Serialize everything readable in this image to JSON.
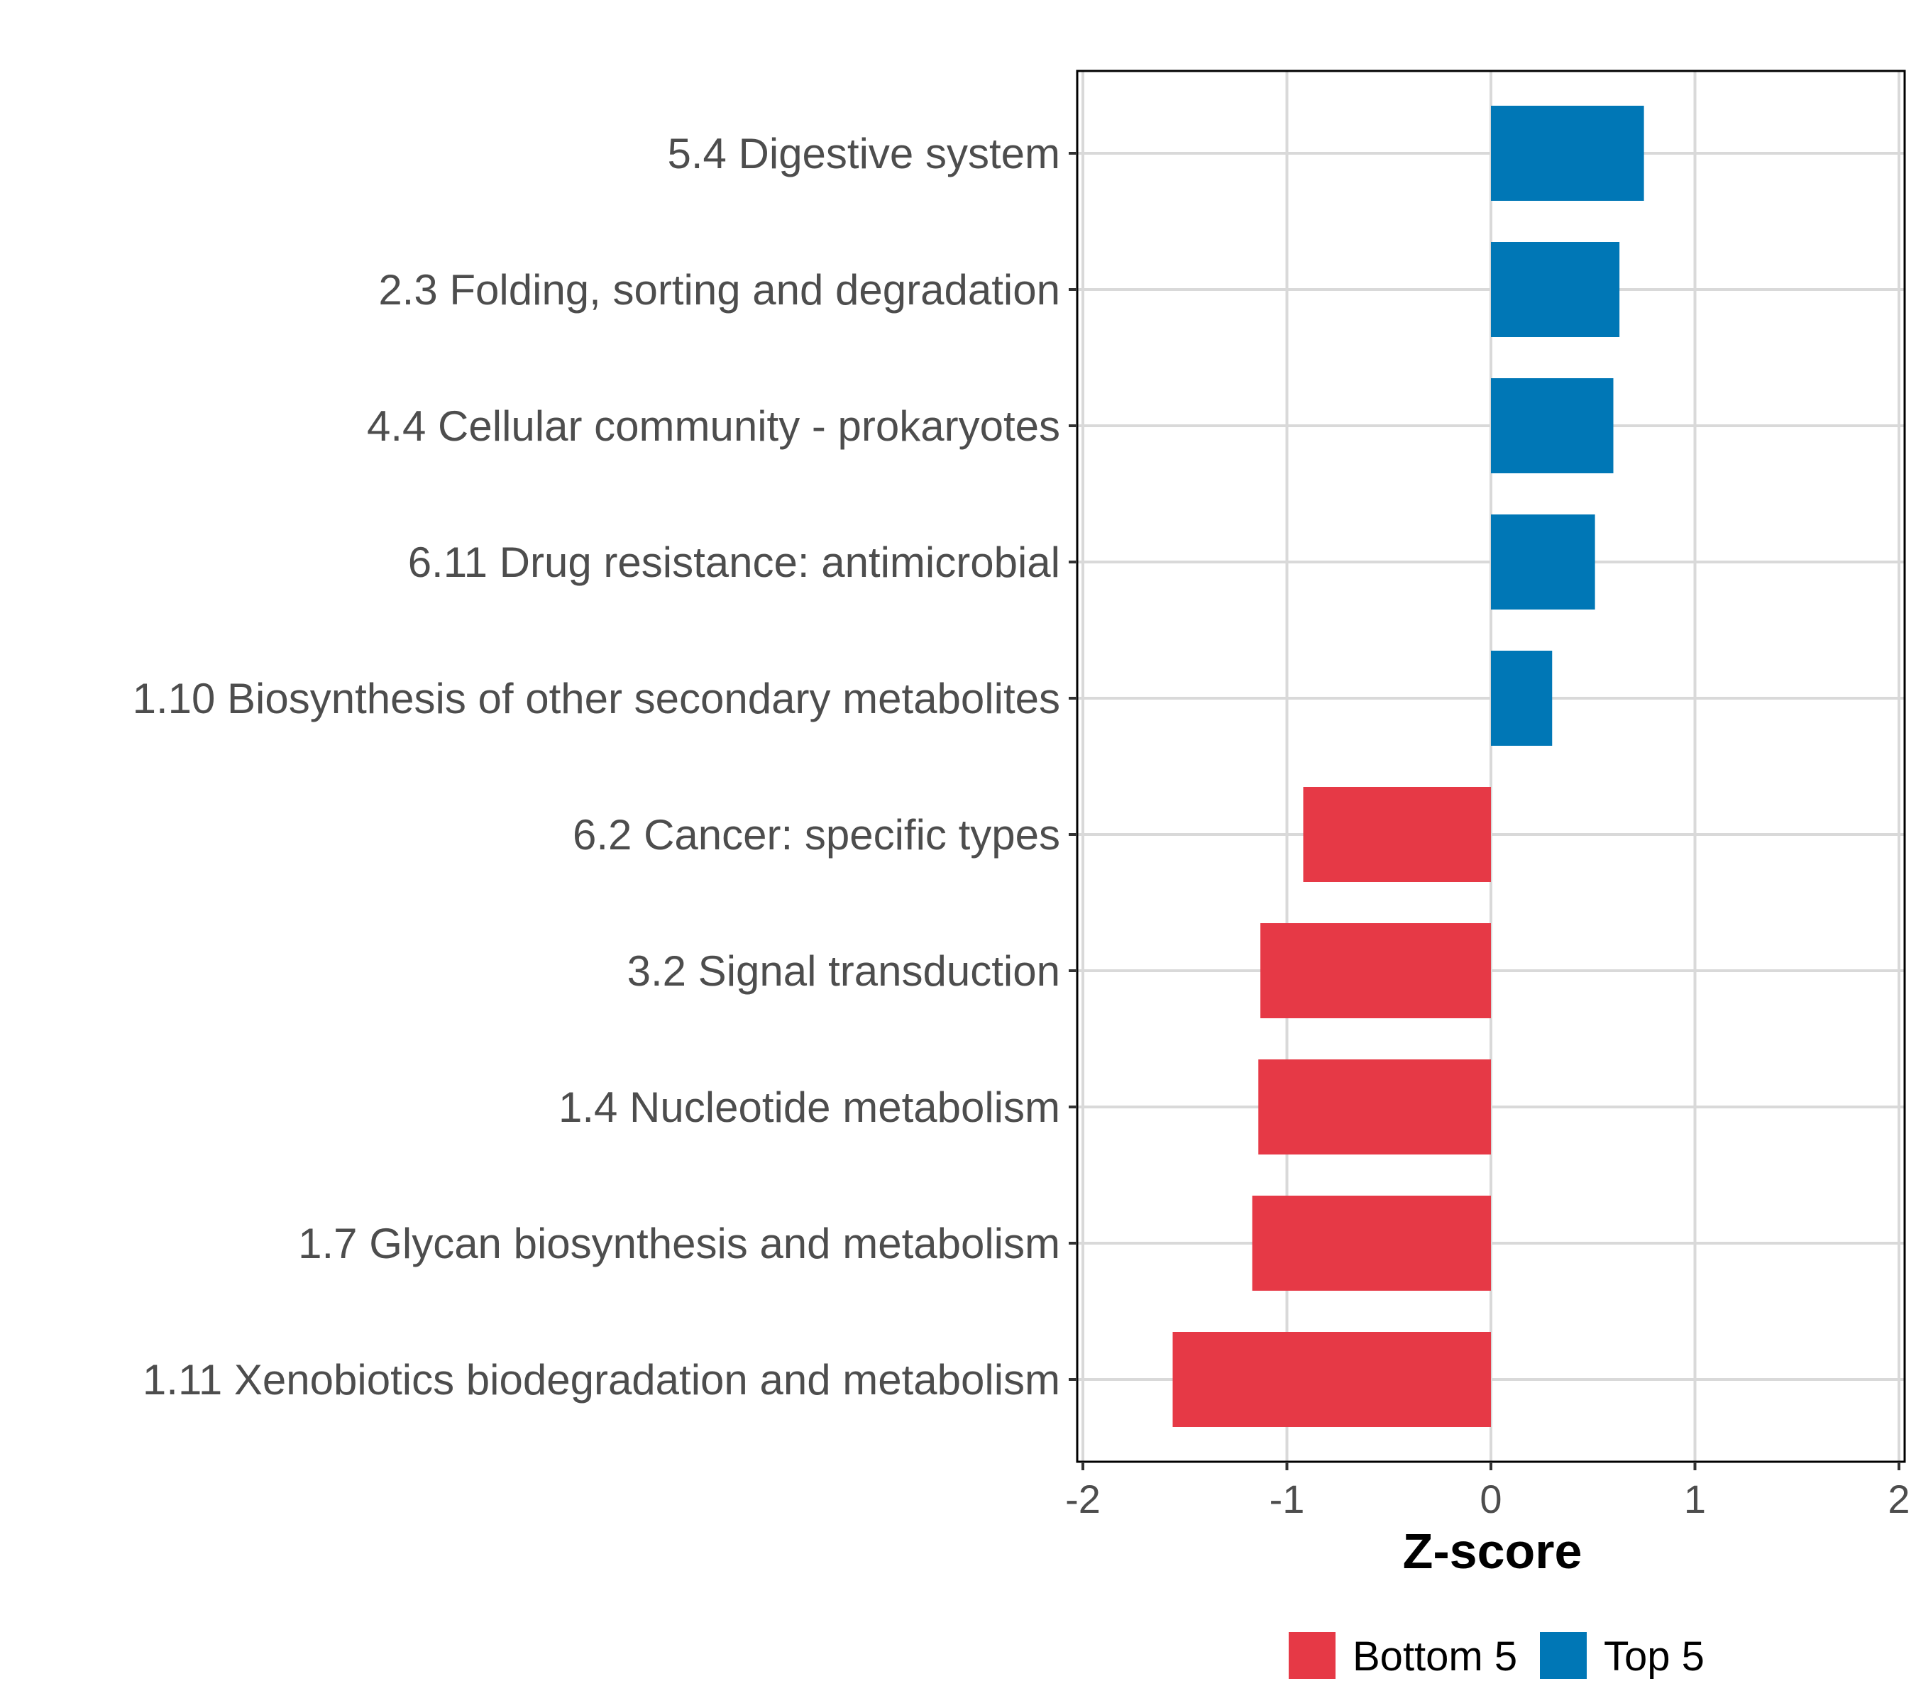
{
  "chart_data": {
    "type": "bar",
    "orientation": "horizontal",
    "xlabel": "Z-score",
    "xlim": [
      -2,
      2
    ],
    "xticks": [
      -2,
      -1,
      0,
      1,
      2
    ],
    "xtick_labels": [
      "-2",
      "-1",
      "0",
      "1",
      "2"
    ],
    "grid": true,
    "legend_position": "bottom",
    "categories": [
      "5.4 Digestive system",
      "2.3 Folding, sorting and degradation",
      "4.4 Cellular community - prokaryotes",
      "6.11 Drug resistance: antimicrobial",
      "1.10 Biosynthesis of other secondary metabolites",
      "6.2 Cancer: specific types",
      "3.2 Signal transduction",
      "1.4 Nucleotide metabolism",
      "1.7 Glycan biosynthesis and metabolism",
      "1.11 Xenobiotics biodegradation and metabolism"
    ],
    "values": [
      0.75,
      0.63,
      0.6,
      0.51,
      0.3,
      -0.92,
      -1.13,
      -1.14,
      -1.17,
      -1.56
    ],
    "groups": [
      "Top 5",
      "Top 5",
      "Top 5",
      "Top 5",
      "Top 5",
      "Bottom 5",
      "Bottom 5",
      "Bottom 5",
      "Bottom 5",
      "Bottom 5"
    ],
    "legend": [
      {
        "name": "Bottom 5",
        "color": "#E63946"
      },
      {
        "name": "Top 5",
        "color": "#0077B6"
      }
    ]
  }
}
